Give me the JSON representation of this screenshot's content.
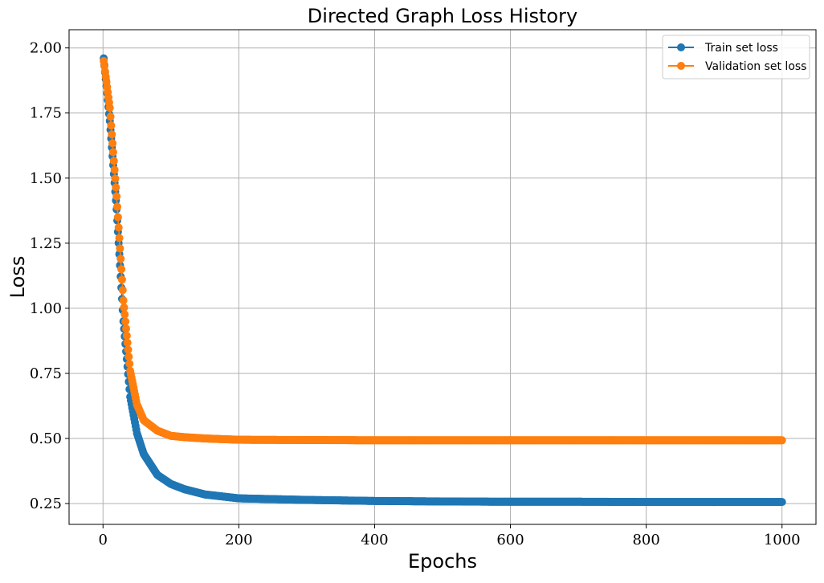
{
  "chart_data": {
    "type": "line",
    "title": "Directed Graph Loss History",
    "xlabel": "Epochs",
    "ylabel": "Loss",
    "xlim": [
      -50,
      1050
    ],
    "ylim": [
      0.17,
      2.07
    ],
    "xticks": [
      0,
      200,
      400,
      600,
      800,
      1000
    ],
    "xtick_labels": [
      "0",
      "200",
      "400",
      "600",
      "800",
      "1000"
    ],
    "yticks": [
      0.25,
      0.5,
      0.75,
      1.0,
      1.25,
      1.5,
      1.75,
      2.0
    ],
    "ytick_labels": [
      "0.25",
      "0.50",
      "0.75",
      "1.00",
      "1.25",
      "1.50",
      "1.75",
      "2.00"
    ],
    "grid": true,
    "legend_position": "top-right",
    "markers": true,
    "series": [
      {
        "name": "Train set loss",
        "color": "#1f77b4",
        "x": [
          1,
          10,
          20,
          30,
          40,
          50,
          60,
          80,
          100,
          120,
          150,
          200,
          300,
          400,
          500,
          600,
          700,
          800,
          900,
          1000
        ],
        "values": [
          1.96,
          1.72,
          1.38,
          0.95,
          0.66,
          0.52,
          0.44,
          0.36,
          0.325,
          0.305,
          0.285,
          0.27,
          0.264,
          0.26,
          0.258,
          0.257,
          0.257,
          0.256,
          0.256,
          0.256
        ]
      },
      {
        "name": "Validation set loss",
        "color": "#ff7f0e",
        "x": [
          1,
          10,
          20,
          30,
          40,
          50,
          60,
          80,
          100,
          120,
          150,
          200,
          300,
          400,
          500,
          600,
          700,
          800,
          900,
          1000
        ],
        "values": [
          1.95,
          1.77,
          1.43,
          1.03,
          0.76,
          0.63,
          0.57,
          0.53,
          0.51,
          0.505,
          0.5,
          0.495,
          0.494,
          0.493,
          0.493,
          0.493,
          0.493,
          0.493,
          0.493,
          0.493
        ]
      }
    ]
  }
}
